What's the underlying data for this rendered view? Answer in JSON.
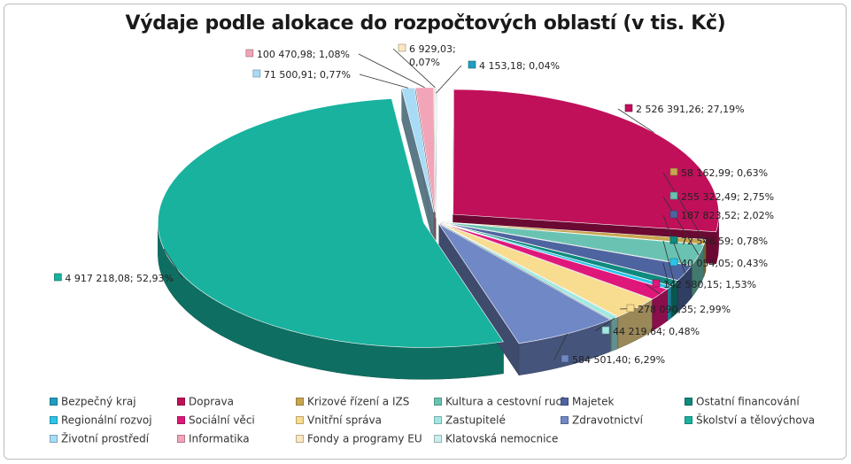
{
  "chart_data": {
    "type": "pie",
    "title": "Výdaje podle alokace do rozpočtových oblastí (v tis. Kč)",
    "legend_position": "bottom",
    "slices": [
      {
        "name": "Bezpečný kraj",
        "value": 4153.18,
        "percent": "0,04%",
        "label": "4 153,18; 0,04%",
        "color": "#1f9ec0"
      },
      {
        "name": "Doprava",
        "value": 2526391.26,
        "percent": "27,19%",
        "label": "2 526 391,26; 27,19%",
        "color": "#c0105a"
      },
      {
        "name": "Krizové řízení a IZS",
        "value": 58162.99,
        "percent": "0,63%",
        "label": "58 162,99; 0,63%",
        "color": "#c8a650"
      },
      {
        "name": "Kultura a cestovní ruch",
        "value": 255322.49,
        "percent": "2,75%",
        "label": "255 322,49; 2,75%",
        "color": "#6ac3b2"
      },
      {
        "name": "Majetek",
        "value": 187823.52,
        "percent": "2,02%",
        "label": "187 823,52; 2,02%",
        "color": "#4e64a0"
      },
      {
        "name": "Ostatní financování",
        "value": 72546.59,
        "percent": "0,78%",
        "label": "72 546,59; 0,78%",
        "color": "#0f8a7e"
      },
      {
        "name": "Regionální rozvoj",
        "value": 40054.05,
        "percent": "0,43%",
        "label": "40 054,05; 0,43%",
        "color": "#2cc4e8"
      },
      {
        "name": "Sociální věci",
        "value": 142580.15,
        "percent": "1,53%",
        "label": "142 580,15; 1,53%",
        "color": "#e0177a"
      },
      {
        "name": "Vnitřní správa",
        "value": 278090.35,
        "percent": "2,99%",
        "label": "278 090,35; 2,99%",
        "color": "#f8dc90"
      },
      {
        "name": "Zastupitelé",
        "value": 44219.64,
        "percent": "0,48%",
        "label": "44 219,64; 0,48%",
        "color": "#a2e8e2"
      },
      {
        "name": "Zdravotnictví",
        "value": 584501.4,
        "percent": "6,29%",
        "label": "584 501,40; 6,29%",
        "color": "#7088c6"
      },
      {
        "name": "Školství a tělovýchova",
        "value": 4917218.08,
        "percent": "52,93%",
        "label": "4 917 218,08; 52,93%",
        "color": "#18b29e"
      },
      {
        "name": "Životní prostředí",
        "value": 71500.91,
        "percent": "0,77%",
        "label": "71 500,91; 0,77%",
        "color": "#a8dcf6"
      },
      {
        "name": "Informatika",
        "value": 100470.98,
        "percent": "1,08%",
        "label": "100 470,98; 1,08%",
        "color": "#f2a4b8"
      },
      {
        "name": "Fondy a programy EU",
        "value": 6929.03,
        "percent": "0,07%",
        "label": "6 929,03; 0,07%",
        "color": "#fde7c0"
      },
      {
        "name": "Klatovská nemocnice",
        "value": 0,
        "percent": "",
        "label": "",
        "color": "#c8eeee"
      }
    ]
  }
}
